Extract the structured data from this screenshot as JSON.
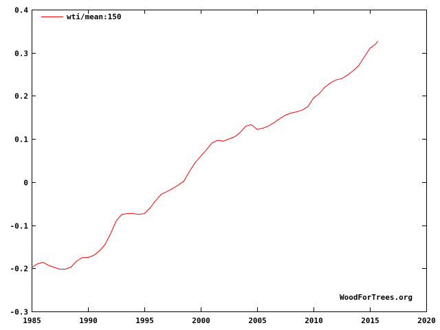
{
  "chart_data": {
    "type": "line",
    "xlim": [
      1985,
      2020
    ],
    "ylim": [
      -0.3,
      0.4
    ],
    "x_ticks": [
      1985,
      1990,
      1995,
      2000,
      2005,
      2010,
      2015,
      2020
    ],
    "x_tick_labels": [
      "1985",
      "1990",
      "1995",
      "2000",
      "2005",
      "2010",
      "2015",
      "2020"
    ],
    "y_ticks": [
      -0.3,
      -0.2,
      -0.1,
      0,
      0.1,
      0.2,
      0.3,
      0.4
    ],
    "y_tick_labels": [
      "-0.3",
      "-0.2",
      "-0.1",
      "0",
      "0.1",
      "0.2",
      "0.3",
      "0.4"
    ],
    "legend_position": "top-left",
    "grid": false,
    "series": [
      {
        "name": "wti/mean:150",
        "color": "#ff0000",
        "x": [
          1985.0,
          1985.5,
          1986.0,
          1986.5,
          1987.0,
          1987.5,
          1988.0,
          1988.5,
          1989.0,
          1989.5,
          1990.0,
          1990.5,
          1991.0,
          1991.5,
          1992.0,
          1992.5,
          1993.0,
          1993.5,
          1994.0,
          1994.5,
          1995.0,
          1995.5,
          1996.0,
          1996.5,
          1997.0,
          1997.5,
          1998.0,
          1998.5,
          1999.0,
          1999.5,
          2000.0,
          2000.5,
          2001.0,
          2001.5,
          2002.0,
          2002.5,
          2003.0,
          2003.5,
          2004.0,
          2004.5,
          2005.0,
          2005.5,
          2006.0,
          2006.5,
          2007.0,
          2007.5,
          2008.0,
          2008.5,
          2009.0,
          2009.5,
          2010.0,
          2010.5,
          2011.0,
          2011.5,
          2012.0,
          2012.5,
          2013.0,
          2013.5,
          2014.0,
          2014.5,
          2015.0,
          2015.5,
          2015.7
        ],
        "values": [
          -0.198,
          -0.19,
          -0.186,
          -0.193,
          -0.198,
          -0.202,
          -0.202,
          -0.197,
          -0.183,
          -0.175,
          -0.175,
          -0.17,
          -0.16,
          -0.145,
          -0.12,
          -0.09,
          -0.075,
          -0.073,
          -0.073,
          -0.075,
          -0.073,
          -0.06,
          -0.043,
          -0.028,
          -0.022,
          -0.015,
          -0.007,
          0.002,
          0.025,
          0.045,
          0.06,
          0.075,
          0.091,
          0.097,
          0.095,
          0.1,
          0.105,
          0.115,
          0.13,
          0.133,
          0.122,
          0.125,
          0.13,
          0.138,
          0.147,
          0.155,
          0.16,
          0.163,
          0.167,
          0.175,
          0.195,
          0.205,
          0.22,
          0.23,
          0.237,
          0.24,
          0.248,
          0.258,
          0.27,
          0.29,
          0.31,
          0.32,
          0.327
        ]
      }
    ],
    "annotations": [
      "WoodForTrees.org"
    ]
  }
}
